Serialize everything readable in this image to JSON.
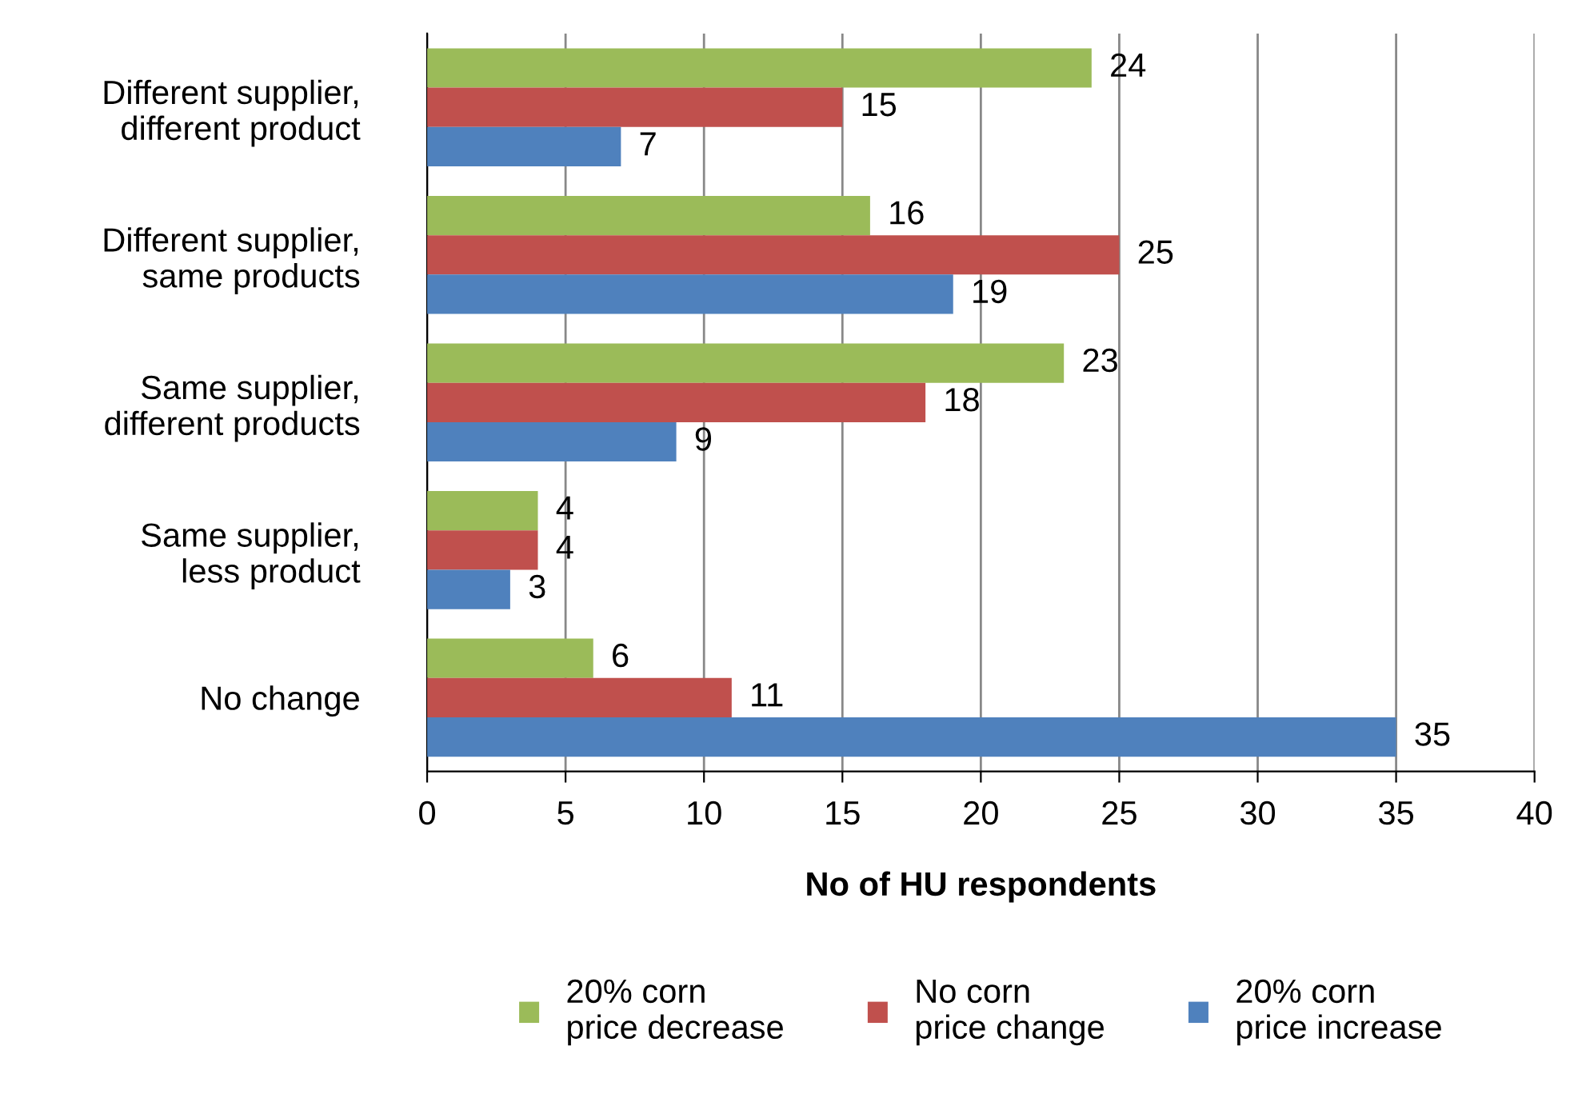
{
  "chart_data": {
    "type": "bar",
    "orientation": "horizontal",
    "xlabel": "No of HU respondents",
    "categories": [
      "Different supplier,\ndifferent product",
      "Different supplier,\nsame products",
      "Same supplier,\ndifferent products",
      "Same supplier,\nless product",
      "No change"
    ],
    "series": [
      {
        "name": "20% corn\nprice decrease",
        "color": "#9bbb59",
        "values": [
          24,
          16,
          23,
          4,
          6
        ]
      },
      {
        "name": "No corn\nprice change",
        "color": "#c0504d",
        "values": [
          15,
          25,
          18,
          4,
          11
        ]
      },
      {
        "name": "20% corn\nprice increase",
        "color": "#4f81bd",
        "values": [
          7,
          19,
          9,
          3,
          35
        ]
      }
    ],
    "xlim": [
      0,
      40
    ],
    "xticks": [
      0,
      5,
      10,
      15,
      20,
      25,
      30,
      35,
      40
    ],
    "grid": "x",
    "legend": "bottom",
    "data_labels": true
  }
}
